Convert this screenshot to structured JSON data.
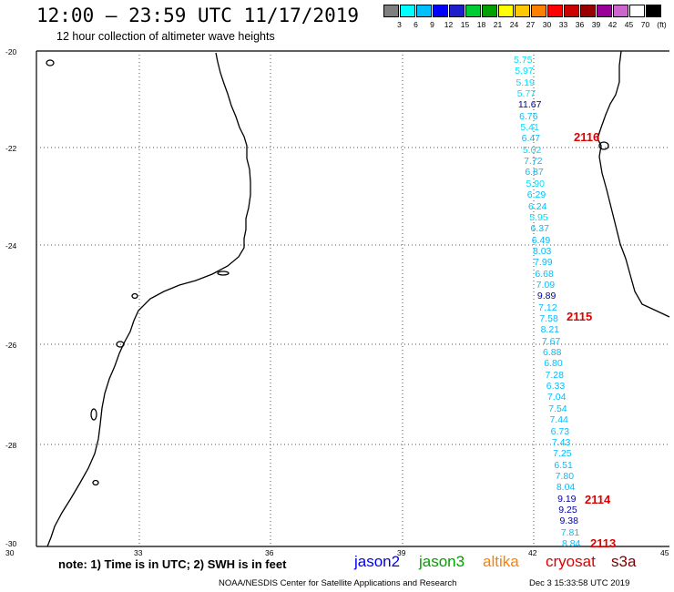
{
  "header": {
    "title": "12:00 – 23:59 UTC 11/17/2019",
    "subtitle": "12 hour collection of altimeter wave heights"
  },
  "colorbar": {
    "colors": [
      "#7f7f7f",
      "#00ffff",
      "#00bfff",
      "#0000ff",
      "#1e1ecc",
      "#00cc33",
      "#00a000",
      "#ffff00",
      "#ffc800",
      "#ff8000",
      "#ff0000",
      "#cc0000",
      "#990000",
      "#990099",
      "#cc66cc",
      "#ffffff",
      "#000000"
    ],
    "labels": [
      "3",
      "6",
      "9",
      "12",
      "15",
      "18",
      "21",
      "24",
      "27",
      "30",
      "33",
      "36",
      "39",
      "42",
      "45",
      "70",
      "(ft)"
    ]
  },
  "map": {
    "lat_labels": [
      "-20",
      "-22",
      "-24",
      "-26",
      "-28",
      "-30"
    ],
    "lon_labels": [
      "30",
      "33",
      "36",
      "39",
      "42",
      "45"
    ]
  },
  "track_points": [
    {
      "v": "5.75",
      "c": "#00e0ff"
    },
    {
      "v": "5.97",
      "c": "#00e0ff"
    },
    {
      "v": "5.19",
      "c": "#00e0ff"
    },
    {
      "v": "5.77",
      "c": "#00e0ff"
    },
    {
      "v": "11.67",
      "c": "#0000aa"
    },
    {
      "v": "6.76",
      "c": "#00bfff"
    },
    {
      "v": "5.41",
      "c": "#00e0ff"
    },
    {
      "v": "6.47",
      "c": "#00bfff"
    },
    {
      "v": "5.02",
      "c": "#00e0ff"
    },
    {
      "v": "7.72",
      "c": "#00bfff"
    },
    {
      "v": "6.87",
      "c": "#00bfff"
    },
    {
      "v": "5.90",
      "c": "#00e0ff"
    },
    {
      "v": "6.29",
      "c": "#00bfff"
    },
    {
      "v": "6.24",
      "c": "#00bfff"
    },
    {
      "v": "5.95",
      "c": "#00e0ff"
    },
    {
      "v": "6.37",
      "c": "#00bfff"
    },
    {
      "v": "6.49",
      "c": "#00bfff"
    },
    {
      "v": "8.03",
      "c": "#00bfff"
    },
    {
      "v": "7.99",
      "c": "#00bfff"
    },
    {
      "v": "6.68",
      "c": "#00bfff"
    },
    {
      "v": "7.09",
      "c": "#00bfff"
    },
    {
      "v": "9.89",
      "c": "#0000aa"
    },
    {
      "v": "7.12",
      "c": "#00bfff"
    },
    {
      "v": "7.58",
      "c": "#00bfff"
    },
    {
      "v": "8.21",
      "c": "#00bfff"
    },
    {
      "v": "7.67",
      "c": "#00bfff"
    },
    {
      "v": "6.88",
      "c": "#00bfff"
    },
    {
      "v": "6.80",
      "c": "#00bfff"
    },
    {
      "v": "7.28",
      "c": "#00bfff"
    },
    {
      "v": "6.33",
      "c": "#00bfff"
    },
    {
      "v": "7.04",
      "c": "#00bfff"
    },
    {
      "v": "7.54",
      "c": "#00bfff"
    },
    {
      "v": "7.44",
      "c": "#00bfff"
    },
    {
      "v": "6.73",
      "c": "#00bfff"
    },
    {
      "v": "7.43",
      "c": "#00bfff"
    },
    {
      "v": "7.25",
      "c": "#00bfff"
    },
    {
      "v": "6.51",
      "c": "#00bfff"
    },
    {
      "v": "7.80",
      "c": "#00bfff"
    },
    {
      "v": "8.04",
      "c": "#00bfff"
    },
    {
      "v": "9.19",
      "c": "#0000aa"
    },
    {
      "v": "9.25",
      "c": "#0000aa"
    },
    {
      "v": "9.38",
      "c": "#0000aa"
    },
    {
      "v": "7.81",
      "c": "#00bfff"
    },
    {
      "v": "8.84",
      "c": "#00bfff"
    }
  ],
  "time_labels": [
    "2116",
    "2115",
    "2114",
    "2113"
  ],
  "footer": {
    "note": "note: 1) Time is in UTC; 2) SWH is in feet",
    "satellites": [
      {
        "name": "jason2",
        "color": "#0000ee"
      },
      {
        "name": "jason3",
        "color": "#00a000"
      },
      {
        "name": "altika",
        "color": "#ff8000"
      },
      {
        "name": "cryosat",
        "color": "#dd0000"
      },
      {
        "name": "s3a",
        "color": "#7a0000"
      }
    ],
    "credit": "NOAA/NESDIS Center for Satellite Applications and Research",
    "timestamp": "Dec  3 15:33:58 UTC 2019"
  }
}
